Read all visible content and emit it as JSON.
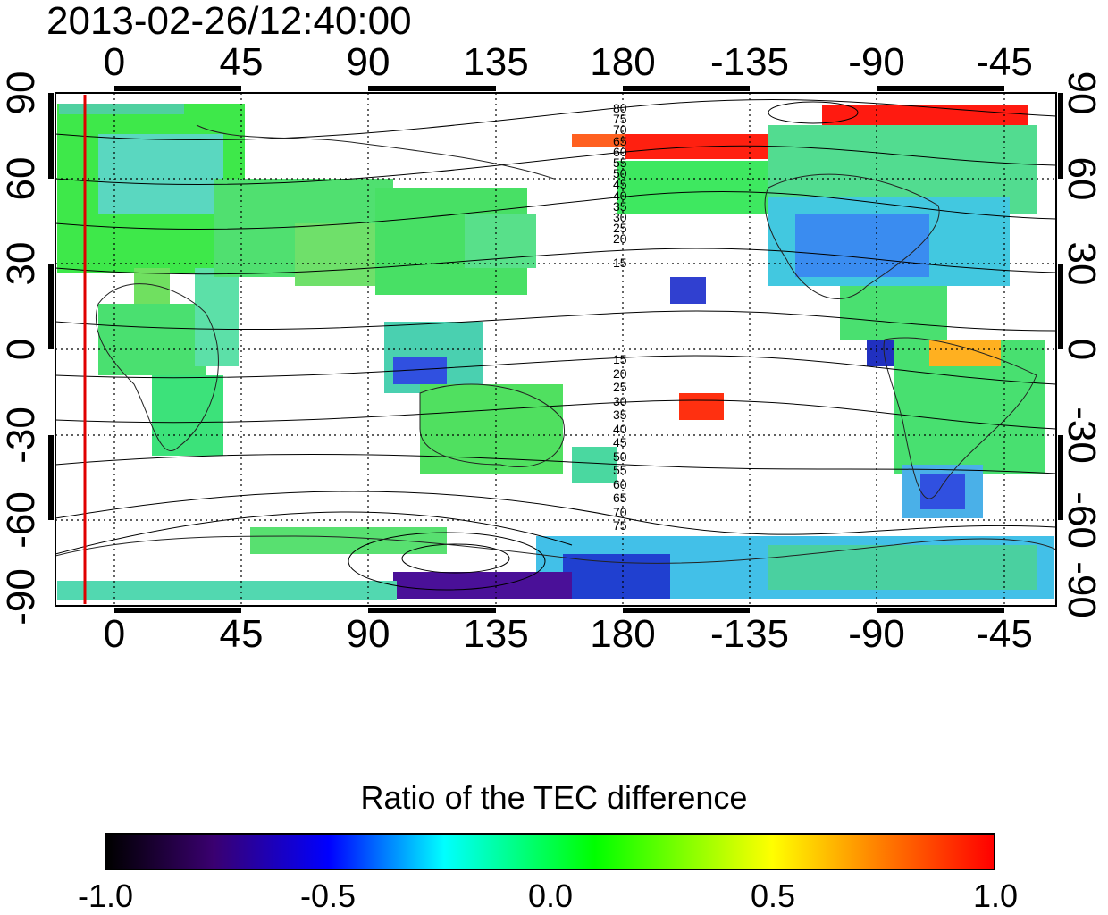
{
  "title": "2013-02-26/12:40:00",
  "axes": {
    "longitude_ticks": [
      "0",
      "45",
      "90",
      "135",
      "180",
      "-135",
      "-90",
      "-45"
    ],
    "latitude_ticks_left": [
      "90",
      "60",
      "30",
      "0",
      "-30",
      "-60",
      "-90"
    ],
    "latitude_ticks_right": [
      "90",
      "60",
      "30",
      "0",
      "-30",
      "-60",
      "-90"
    ]
  },
  "contour_labels": {
    "north": [
      "80",
      "75",
      "70",
      "65",
      "60",
      "55",
      "50",
      "45",
      "40",
      "35",
      "30",
      "25",
      "20",
      "15"
    ],
    "south": [
      "15",
      "20",
      "25",
      "30",
      "35",
      "40",
      "45",
      "50",
      "55",
      "60",
      "65",
      "70",
      "75"
    ]
  },
  "colorbar": {
    "title": "Ratio of the TEC difference",
    "labels": [
      "-1.0",
      "-0.5",
      "0.0",
      "0.5",
      "1.0"
    ],
    "range": [
      -1.0,
      1.0
    ]
  },
  "colors": {
    "marker_line": "#e00000",
    "frame": "#000000"
  }
}
